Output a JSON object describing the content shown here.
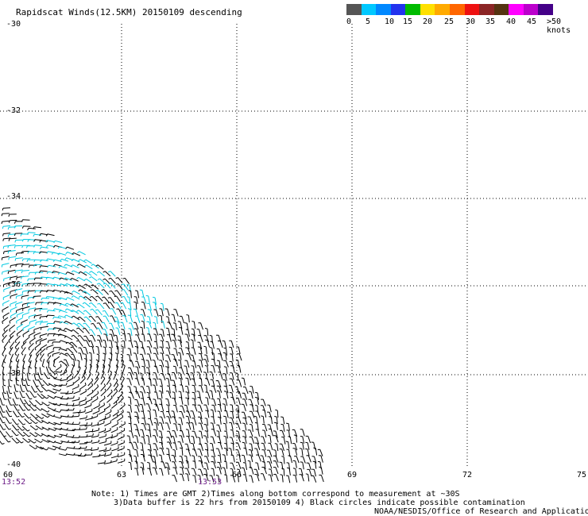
{
  "title": "Rapidscat Winds(12.5KM) 20150109 descending",
  "colorbar": {
    "colors": [
      "#555555",
      "#00c8ff",
      "#0088ff",
      "#2233ee",
      "#00bb00",
      "#ffe000",
      "#ffaa00",
      "#ff6600",
      "#ee1111",
      "#8b2525",
      "#553311",
      "#ff00ff",
      "#bb00cc",
      "#440088"
    ],
    "labels": [
      "0",
      "5",
      "10",
      "15",
      "20",
      "25",
      "30",
      "35",
      "40",
      "45",
      ">50 knots"
    ]
  },
  "axes": {
    "y_labels": [
      "-30",
      "-32",
      "-34",
      "-36",
      "-38",
      "-40"
    ],
    "x_labels": [
      "60",
      "63",
      "66",
      "69",
      "72",
      "75"
    ],
    "x_times": [
      "13:52",
      "13:53"
    ]
  },
  "notes": [
    "Note: 1) Times are GMT 2)Times along bottom correspond to measurement at ~30S",
    "3)Data buffer is 22 hrs from 20150109 4) Black circles indicate possible contamination",
    "NOAA/NESDIS/Office of Research and Applications"
  ],
  "wind_colors": {
    "low": "#000000",
    "mid": "#00c8e0"
  }
}
